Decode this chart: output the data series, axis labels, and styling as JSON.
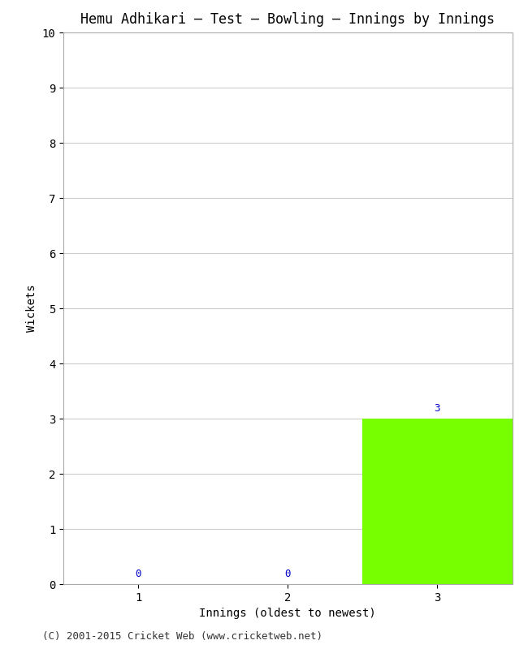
{
  "title": "Hemu Adhikari – Test – Bowling – Innings by Innings",
  "xlabel": "Innings (oldest to newest)",
  "ylabel": "Wickets",
  "categories": [
    1,
    2,
    3
  ],
  "values": [
    0,
    0,
    3
  ],
  "bar_color": "#77ff00",
  "ylim": [
    0,
    10
  ],
  "yticks": [
    0,
    1,
    2,
    3,
    4,
    5,
    6,
    7,
    8,
    9,
    10
  ],
  "background_color": "#ffffff",
  "grid_color": "#cccccc",
  "annotation_color": "#0000cc",
  "footer": "(C) 2001-2015 Cricket Web (www.cricketweb.net)",
  "title_fontsize": 12,
  "axis_fontsize": 10,
  "tick_fontsize": 10,
  "annotation_fontsize": 9,
  "footer_fontsize": 9
}
